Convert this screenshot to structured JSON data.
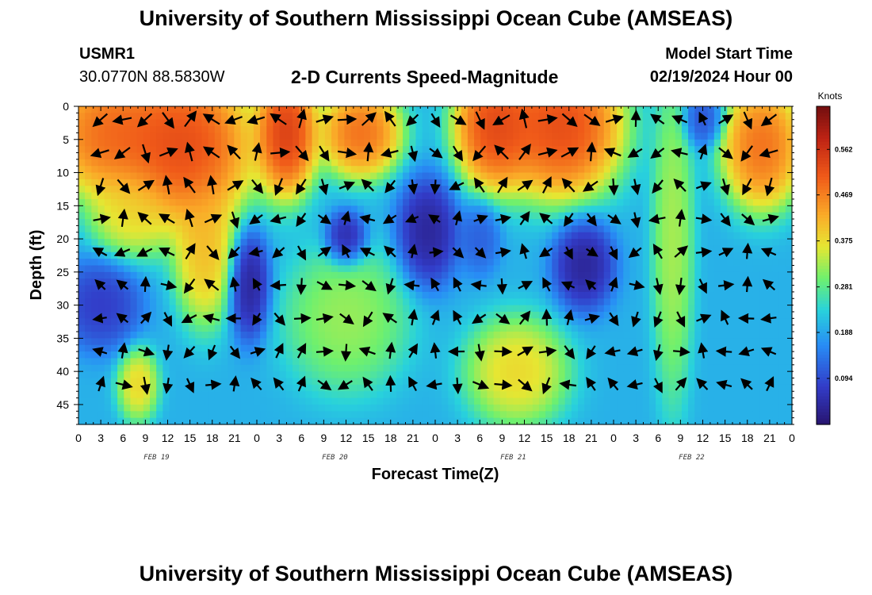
{
  "header": {
    "title": "University of Southern Mississippi Ocean Cube (AMSEAS)",
    "station_id": "USMR1",
    "station_coords": "30.0770N  88.5830W",
    "plot_title": "2-D Currents Speed-Magnitude",
    "model_label": "Model Start Time",
    "model_time": "02/19/2024 Hour 00"
  },
  "footer": {
    "title": "University of Southern Mississippi Ocean Cube (AMSEAS)"
  },
  "chart_data": {
    "type": "heatmap",
    "title": "2-D Currents Speed-Magnitude",
    "xlabel": "Forecast Time(Z)",
    "ylabel": "Depth (ft)",
    "x_tick_labels": [
      "0",
      "3",
      "6",
      "9",
      "12",
      "15",
      "18",
      "21",
      "0",
      "3",
      "6",
      "9",
      "12",
      "15",
      "18",
      "21",
      "0",
      "3",
      "6",
      "9",
      "12",
      "15",
      "18",
      "21",
      "0",
      "3",
      "6",
      "9",
      "12",
      "15",
      "18",
      "21",
      "0"
    ],
    "x_hours_range": [
      0,
      96
    ],
    "date_labels": [
      {
        "text": "FEB 19",
        "hour": 10.5
      },
      {
        "text": "FEB 20",
        "hour": 34.5
      },
      {
        "text": "FEB 21",
        "hour": 58.5
      },
      {
        "text": "FEB 22",
        "hour": 82.5
      }
    ],
    "y_ticks": [
      0,
      5,
      10,
      15,
      20,
      25,
      30,
      35,
      40,
      45
    ],
    "ylim": [
      0,
      48
    ],
    "y_inverted": true,
    "colorbar": {
      "unit": "Knots",
      "range": [
        0.0,
        0.65
      ],
      "ticks": [
        0.094,
        0.188,
        0.281,
        0.375,
        0.469,
        0.562
      ],
      "tick_labels": [
        "0.094",
        "0.188",
        "0.281",
        "0.375",
        "0.469",
        "0.562"
      ]
    },
    "speed_field_blobs": [
      {
        "hour": 4,
        "depth": 4,
        "value": 0.55,
        "spread_h": 6,
        "spread_d": 7
      },
      {
        "hour": 14,
        "depth": 6,
        "value": 0.6,
        "spread_h": 7,
        "spread_d": 9
      },
      {
        "hour": 17,
        "depth": 22,
        "value": 0.45,
        "spread_h": 3,
        "spread_d": 8
      },
      {
        "hour": 7,
        "depth": 16,
        "value": 0.4,
        "spread_h": 4,
        "spread_d": 5
      },
      {
        "hour": 8,
        "depth": 42,
        "value": 0.42,
        "spread_h": 2,
        "spread_d": 4
      },
      {
        "hour": 28,
        "depth": 4,
        "value": 0.62,
        "spread_h": 3,
        "spread_d": 7
      },
      {
        "hour": 38,
        "depth": 4,
        "value": 0.55,
        "spread_h": 4,
        "spread_d": 5
      },
      {
        "hour": 36,
        "depth": 32,
        "value": 0.35,
        "spread_h": 6,
        "spread_d": 8
      },
      {
        "hour": 56,
        "depth": 3,
        "value": 0.6,
        "spread_h": 4,
        "spread_d": 7
      },
      {
        "hour": 65,
        "depth": 3,
        "value": 0.6,
        "spread_h": 6,
        "spread_d": 8
      },
      {
        "hour": 59,
        "depth": 40,
        "value": 0.42,
        "spread_h": 5,
        "spread_d": 6
      },
      {
        "hour": 80,
        "depth": 20,
        "value": 0.36,
        "spread_h": 2,
        "spread_d": 18
      },
      {
        "hour": 92,
        "depth": 6,
        "value": 0.55,
        "spread_h": 4,
        "spread_d": 7
      },
      {
        "hour": 23,
        "depth": 27,
        "value": 0.0,
        "spread_h": 2,
        "spread_d": 6
      },
      {
        "hour": 36,
        "depth": 20,
        "value": 0.0,
        "spread_h": 2,
        "spread_d": 3
      },
      {
        "hour": 47,
        "depth": 19,
        "value": 0.0,
        "spread_h": 3,
        "spread_d": 6
      },
      {
        "hour": 68,
        "depth": 24,
        "value": 0.0,
        "spread_h": 3,
        "spread_d": 5
      },
      {
        "hour": 54,
        "depth": 20,
        "value": 0.1,
        "spread_h": 2,
        "spread_d": 4
      },
      {
        "hour": 3,
        "depth": 30,
        "value": 0.05,
        "spread_h": 4,
        "spread_d": 5
      },
      {
        "hour": 84,
        "depth": 2,
        "value": 0.08,
        "spread_h": 2,
        "spread_d": 3
      }
    ],
    "background_speed": 0.2,
    "vector_field_note": "arrows give current direction at 3-hour by 5-foot spacing"
  }
}
